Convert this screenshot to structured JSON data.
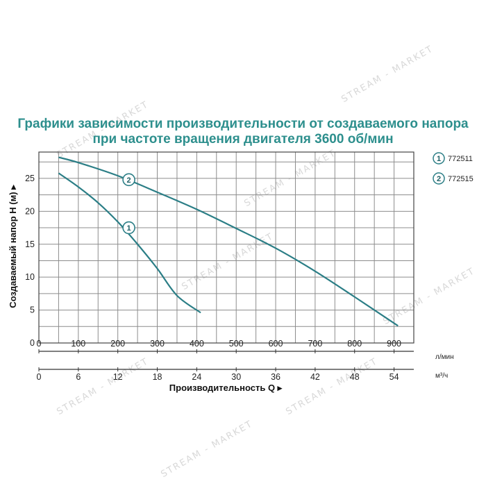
{
  "chart_data": {
    "type": "line",
    "title_lines": [
      "Графики зависимости производительности от создаваемого напора",
      "при частоте вращения двигателя 3600 об/мин"
    ],
    "ylabel": "Создаваемый напор H (м) ▸",
    "xlabel": "Производительность Q ▸",
    "x_unit": "л/мин",
    "x2_unit": "м³/ч",
    "xlim": [
      0,
      950
    ],
    "ylim": [
      0,
      29
    ],
    "x_ticks": [
      0,
      100,
      200,
      300,
      400,
      500,
      600,
      700,
      800,
      900
    ],
    "x2_ticks": [
      0,
      6,
      12,
      18,
      24,
      30,
      36,
      42,
      48,
      54
    ],
    "y_ticks": [
      0,
      5,
      10,
      15,
      20,
      25
    ],
    "grid": true,
    "legend_position": "top-right",
    "series": [
      {
        "name": "772511",
        "marker": "1",
        "color": "#2b7e86",
        "points": [
          [
            50,
            25.8
          ],
          [
            100,
            23.7
          ],
          [
            150,
            21.3
          ],
          [
            200,
            18.4
          ],
          [
            250,
            15.0
          ],
          [
            300,
            11.3
          ],
          [
            350,
            7.2
          ],
          [
            410,
            4.6
          ]
        ],
        "label_at": [
          228,
          17.5
        ]
      },
      {
        "name": "772515",
        "marker": "2",
        "color": "#2b7e86",
        "points": [
          [
            50,
            28.2
          ],
          [
            100,
            27.4
          ],
          [
            200,
            25.4
          ],
          [
            300,
            22.9
          ],
          [
            400,
            20.3
          ],
          [
            500,
            17.4
          ],
          [
            600,
            14.4
          ],
          [
            700,
            10.9
          ],
          [
            800,
            7.0
          ],
          [
            910,
            2.6
          ]
        ],
        "label_at": [
          228,
          24.8
        ]
      }
    ]
  },
  "watermark": "STREAM - MARKET"
}
